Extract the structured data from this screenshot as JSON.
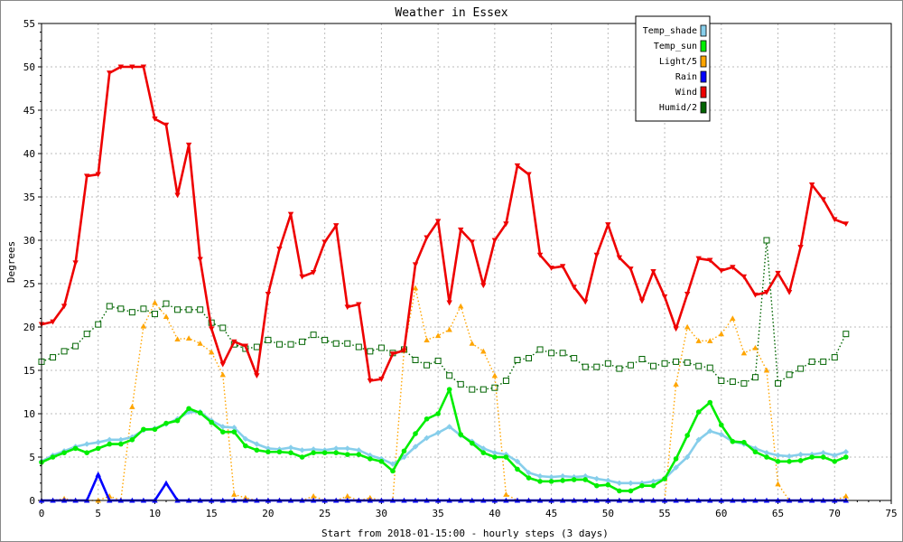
{
  "chart_data": {
    "type": "line",
    "title": "Weather in Essex",
    "xlabel": "Start from 2018-01-15:00 - hourly steps (3 days)",
    "ylabel": "Degrees",
    "xlim": [
      0,
      75
    ],
    "ylim": [
      0,
      55
    ],
    "xticks": [
      0,
      5,
      10,
      15,
      20,
      25,
      30,
      35,
      40,
      45,
      50,
      55,
      60,
      65,
      70,
      75
    ],
    "yticks": [
      0,
      5,
      10,
      15,
      20,
      25,
      30,
      35,
      40,
      45,
      50,
      55
    ],
    "grid": true,
    "legend_position": "top-right",
    "x": [
      0,
      1,
      2,
      3,
      4,
      5,
      6,
      7,
      8,
      9,
      10,
      11,
      12,
      13,
      14,
      15,
      16,
      17,
      18,
      19,
      20,
      21,
      22,
      23,
      24,
      25,
      26,
      27,
      28,
      29,
      30,
      31,
      32,
      33,
      34,
      35,
      36,
      37,
      38,
      39,
      40,
      41,
      42,
      43,
      44,
      45,
      46,
      47,
      48,
      49,
      50,
      51,
      52,
      53,
      54,
      55,
      56,
      57,
      58,
      59,
      60,
      61,
      62,
      63,
      64,
      65,
      66,
      67,
      68,
      69,
      70,
      71
    ],
    "series": [
      {
        "name": "Temp_shade",
        "color": "#87ceeb",
        "line_style": "solid",
        "marker": "diamond",
        "values": [
          4.5,
          5.2,
          5.7,
          6.2,
          6.5,
          6.7,
          7.0,
          7.0,
          7.3,
          8.1,
          8.3,
          8.8,
          9.4,
          10.2,
          10.2,
          9.2,
          8.5,
          8.4,
          7.1,
          6.5,
          6.0,
          5.9,
          6.1,
          5.8,
          5.9,
          5.8,
          6.0,
          6.0,
          5.8,
          5.2,
          4.8,
          4.2,
          5.0,
          6.2,
          7.2,
          7.8,
          8.5,
          7.5,
          6.8,
          6.0,
          5.5,
          5.3,
          4.5,
          3.2,
          2.8,
          2.7,
          2.8,
          2.7,
          2.8,
          2.5,
          2.3,
          2.0,
          2.0,
          2.0,
          2.2,
          2.5,
          3.8,
          5.0,
          7.0,
          8.0,
          7.6,
          6.8,
          6.5,
          6.0,
          5.5,
          5.2,
          5.1,
          5.3,
          5.3,
          5.5,
          5.2,
          5.6
        ]
      },
      {
        "name": "Temp_sun",
        "color": "#00ee00",
        "line_style": "solid",
        "marker": "circle",
        "values": [
          4.4,
          5.0,
          5.5,
          6.0,
          5.5,
          6.0,
          6.5,
          6.5,
          7.0,
          8.2,
          8.2,
          8.9,
          9.2,
          10.6,
          10.1,
          9.0,
          7.9,
          7.9,
          6.3,
          5.8,
          5.6,
          5.6,
          5.5,
          5.0,
          5.5,
          5.5,
          5.5,
          5.3,
          5.3,
          4.8,
          4.5,
          3.4,
          5.7,
          7.7,
          9.4,
          10.0,
          12.8,
          7.6,
          6.6,
          5.5,
          5.0,
          5.0,
          3.6,
          2.6,
          2.2,
          2.2,
          2.3,
          2.4,
          2.4,
          1.7,
          1.8,
          1.1,
          1.1,
          1.7,
          1.7,
          2.5,
          4.8,
          7.5,
          10.2,
          11.3,
          8.7,
          6.8,
          6.7,
          5.6,
          5.0,
          4.5,
          4.5,
          4.6,
          5.0,
          5.0,
          4.5,
          5.0
        ]
      },
      {
        "name": "Light/5",
        "color": "#ffa500",
        "line_style": "dotted",
        "marker": "triangle-up",
        "values": [
          0,
          0,
          0.2,
          0,
          0,
          0,
          0.5,
          0,
          10.8,
          20.1,
          22.8,
          21.2,
          18.6,
          18.7,
          18.1,
          17.1,
          14.5,
          0.7,
          0.3,
          0,
          0,
          0,
          0,
          0,
          0.5,
          0,
          0,
          0.5,
          0,
          0.3,
          0,
          0,
          17.4,
          24.5,
          18.5,
          19.0,
          19.7,
          22.4,
          18.1,
          17.2,
          14.4,
          0.7,
          0,
          0,
          0,
          0,
          0,
          0,
          0,
          0,
          0,
          0,
          0,
          0,
          0,
          0,
          13.4,
          20.0,
          18.4,
          18.4,
          19.2,
          21.0,
          17.0,
          17.6,
          15.0,
          1.9,
          0,
          0,
          0,
          0,
          0,
          0.5
        ]
      },
      {
        "name": "Rain",
        "color": "#0000ff",
        "line_style": "solid",
        "marker": "triangle-up",
        "values": [
          0,
          0,
          0,
          0,
          0,
          3.0,
          0,
          0,
          0,
          0,
          0,
          2.0,
          0,
          0,
          0,
          0,
          0,
          0,
          0,
          0,
          0,
          0,
          0,
          0,
          0,
          0,
          0,
          0,
          0,
          0,
          0,
          0,
          0,
          0,
          0,
          0,
          0,
          0,
          0,
          0,
          0,
          0,
          0,
          0,
          0,
          0,
          0,
          0,
          0,
          0,
          0,
          0,
          0,
          0,
          0,
          0,
          0,
          0,
          0,
          0,
          0,
          0,
          0,
          0,
          0,
          0,
          0,
          0,
          0,
          0,
          0,
          0
        ]
      },
      {
        "name": "Wind",
        "color": "#ee0000",
        "line_style": "solid",
        "marker": "triangle-down",
        "values": [
          20.3,
          20.6,
          22.4,
          27.4,
          37.4,
          37.6,
          49.3,
          50.0,
          50.0,
          50.0,
          44.0,
          43.3,
          35.2,
          41.0,
          27.8,
          19.8,
          15.7,
          18.3,
          17.8,
          14.4,
          23.8,
          29.0,
          33.0,
          25.8,
          26.3,
          29.8,
          31.7,
          22.3,
          22.6,
          13.8,
          14.0,
          16.9,
          17.3,
          27.2,
          30.3,
          32.2,
          22.8,
          31.2,
          29.8,
          24.8,
          30.0,
          31.9,
          38.6,
          37.6,
          28.3,
          26.8,
          27.0,
          24.6,
          22.9,
          28.3,
          31.8,
          28.0,
          26.7,
          23.0,
          26.4,
          23.5,
          19.8,
          23.8,
          27.9,
          27.7,
          26.5,
          26.9,
          25.8,
          23.7,
          24.0,
          26.2,
          24.0,
          29.2,
          36.4,
          34.7,
          32.4,
          31.9
        ]
      },
      {
        "name": "Humid/2",
        "color": "#006400",
        "line_style": "dotted",
        "marker": "square",
        "values": [
          16.0,
          16.5,
          17.2,
          17.8,
          19.2,
          20.3,
          22.4,
          22.1,
          21.7,
          22.1,
          21.5,
          22.7,
          22.0,
          22.0,
          22.0,
          20.5,
          19.9,
          18.0,
          17.5,
          17.7,
          18.5,
          18.0,
          18.0,
          18.3,
          19.1,
          18.5,
          18.1,
          18.1,
          17.7,
          17.2,
          17.6,
          17.0,
          17.4,
          16.2,
          15.6,
          16.1,
          14.4,
          13.4,
          12.8,
          12.8,
          13.0,
          13.8,
          16.2,
          16.4,
          17.4,
          17.0,
          17.0,
          16.4,
          15.4,
          15.4,
          15.8,
          15.2,
          15.6,
          16.3,
          15.5,
          15.8,
          16.0,
          15.9,
          15.5,
          15.3,
          13.8,
          13.7,
          13.5,
          14.2,
          30.0,
          13.5,
          14.5,
          15.2,
          16.0,
          16.0,
          16.5,
          19.2
        ]
      }
    ]
  }
}
